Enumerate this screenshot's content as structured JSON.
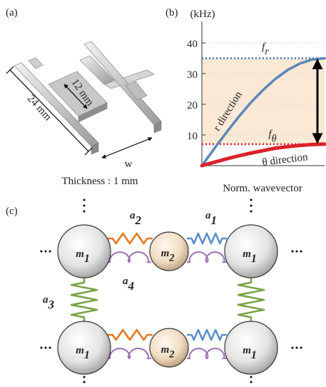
{
  "panel_a": {
    "label": "(a)",
    "length": "24 mm",
    "width": "12 mm",
    "gap": "w",
    "thickness": "Thickness : 1 mm"
  },
  "chart_data": {
    "type": "line",
    "label": "(b)",
    "y_label": "(kHz)",
    "x_label": "Norm. wavevector",
    "x": [
      0,
      0.1,
      0.2,
      0.3,
      0.4,
      0.5,
      0.6,
      0.7,
      0.8,
      0.9,
      1
    ],
    "xlim": [
      0,
      1
    ],
    "ylim": [
      0,
      47
    ],
    "yticks": [
      10,
      20,
      30,
      40
    ],
    "grid": true,
    "series": [
      {
        "color": "#5b87b8",
        "values": [
          0,
          5.5,
          10.8,
          15.9,
          20.6,
          24.7,
          28.3,
          31.2,
          33.3,
          34.6,
          35
        ]
      },
      {
        "color": "#d9232a",
        "values": [
          0,
          1.1,
          2.2,
          3.2,
          4.1,
          4.9,
          5.7,
          6.2,
          6.6,
          6.9,
          7
        ]
      }
    ],
    "reference_lines": [
      {
        "value": 35,
        "symbol": "f",
        "subscript": "r",
        "color": "#3f73b3"
      },
      {
        "value": 7,
        "symbol": "f",
        "subscript": "θ",
        "color": "#d9232a"
      }
    ],
    "annotations": [
      {
        "text": "r direction",
        "color": "#4a78b5"
      },
      {
        "text": "θ direction",
        "color": "#d9232a"
      }
    ]
  },
  "panel_c": {
    "label": "(c)",
    "masses": [
      {
        "symbol": "m",
        "index": "1"
      },
      {
        "symbol": "m",
        "index": "2"
      }
    ],
    "springs": [
      {
        "symbol": "a",
        "index": "1"
      },
      {
        "symbol": "a",
        "index": "2"
      },
      {
        "symbol": "a",
        "index": "3"
      },
      {
        "symbol": "a",
        "index": "4"
      }
    ]
  }
}
